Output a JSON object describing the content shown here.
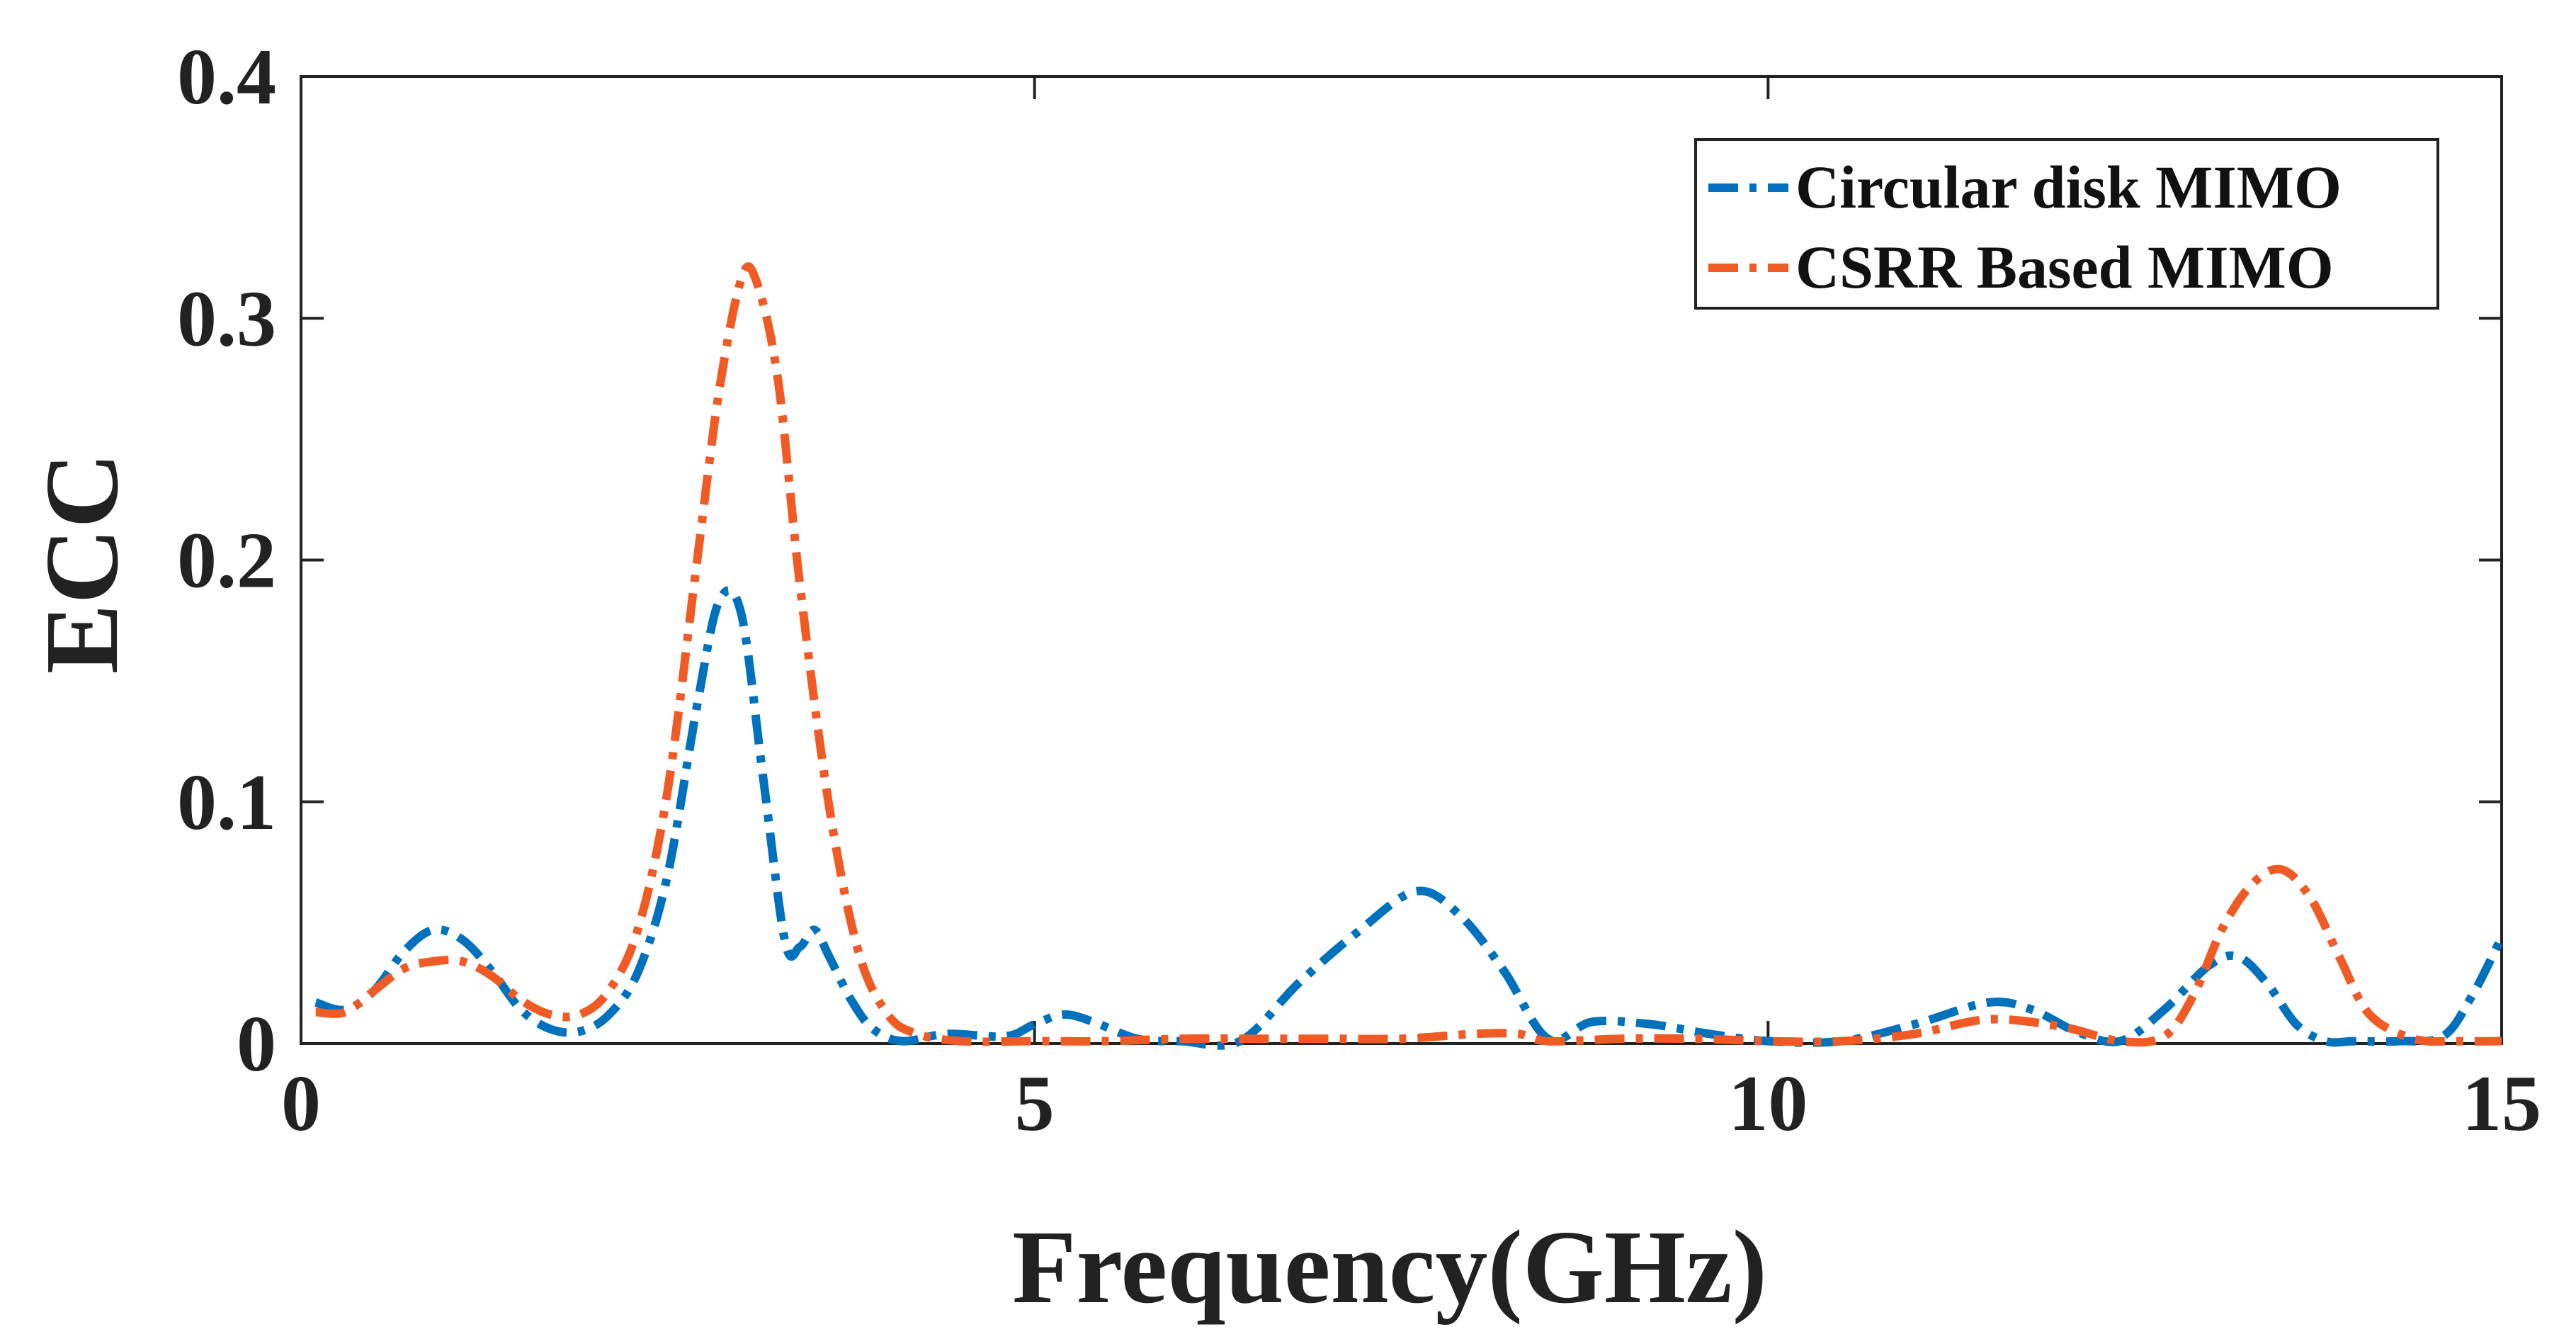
{
  "chart_data": {
    "type": "line",
    "xlabel": "Frequency(GHz)",
    "ylabel": "ECC",
    "xlim": [
      0,
      15
    ],
    "ylim": [
      0,
      0.4
    ],
    "xticks": [
      0,
      5,
      10,
      15
    ],
    "yticks": [
      0,
      0.1,
      0.2,
      0.3,
      0.4
    ],
    "xtick_labels": [
      "0",
      "5",
      "10",
      "15"
    ],
    "ytick_labels": [
      "0",
      "0.1",
      "0.2",
      "0.3",
      "0.4"
    ],
    "grid": false,
    "box": true,
    "legend_position": "top-right",
    "series": [
      {
        "name": "Circular disk MIMO",
        "color": "#0072BD",
        "line_style": "dash-dot",
        "x": [
          0.1,
          0.3,
          0.5,
          0.7,
          0.9,
          1.1,
          1.3,
          1.5,
          1.7,
          1.9,
          2.1,
          2.3,
          2.5,
          2.7,
          2.85,
          3.0,
          3.15,
          3.3,
          3.4,
          3.5,
          3.6,
          3.75,
          3.9,
          4.1,
          4.4,
          4.8,
          5.0,
          5.2,
          5.4,
          5.7,
          6.0,
          6.4,
          6.8,
          7.2,
          7.6,
          7.9,
          8.2,
          8.5,
          8.8,
          9.2,
          9.6,
          10.0,
          10.5,
          11.0,
          11.5,
          11.8,
          12.1,
          12.4,
          12.7,
          13.0,
          13.2,
          13.4,
          13.6,
          13.8,
          14.0,
          14.3,
          14.6,
          14.8,
          15.0
        ],
        "y": [
          0.017,
          0.014,
          0.022,
          0.038,
          0.047,
          0.043,
          0.03,
          0.014,
          0.006,
          0.005,
          0.012,
          0.03,
          0.07,
          0.14,
          0.183,
          0.178,
          0.11,
          0.042,
          0.04,
          0.047,
          0.036,
          0.018,
          0.006,
          0.001,
          0.004,
          0.003,
          0.008,
          0.012,
          0.009,
          0.002,
          0.001,
          0.001,
          0.025,
          0.046,
          0.063,
          0.053,
          0.03,
          0.002,
          0.009,
          0.008,
          0.004,
          0.001,
          0.001,
          0.008,
          0.017,
          0.014,
          0.005,
          0.001,
          0.014,
          0.032,
          0.036,
          0.025,
          0.008,
          0.001,
          0.001,
          0.001,
          0.003,
          0.02,
          0.044
        ]
      },
      {
        "name": "CSRR Based MIMO",
        "color": "#F05A24",
        "line_style": "dash-dot",
        "x": [
          0.1,
          0.3,
          0.5,
          0.7,
          0.9,
          1.1,
          1.3,
          1.5,
          1.7,
          1.9,
          2.1,
          2.3,
          2.5,
          2.7,
          2.85,
          3.0,
          3.1,
          3.25,
          3.4,
          3.6,
          3.8,
          4.0,
          4.2,
          4.5,
          5.0,
          5.5,
          6.0,
          6.5,
          7.0,
          7.5,
          8.0,
          8.3,
          8.5,
          9.0,
          9.5,
          10.0,
          10.5,
          11.0,
          11.5,
          12.0,
          12.4,
          12.7,
          12.9,
          13.1,
          13.3,
          13.5,
          13.7,
          13.9,
          14.1,
          14.4,
          14.7,
          15.0
        ],
        "y": [
          0.013,
          0.013,
          0.022,
          0.031,
          0.034,
          0.034,
          0.028,
          0.018,
          0.012,
          0.012,
          0.022,
          0.048,
          0.105,
          0.2,
          0.27,
          0.316,
          0.316,
          0.275,
          0.19,
          0.098,
          0.038,
          0.012,
          0.004,
          0.001,
          0.001,
          0.001,
          0.002,
          0.002,
          0.002,
          0.002,
          0.004,
          0.004,
          0.001,
          0.002,
          0.002,
          0.001,
          0.001,
          0.004,
          0.01,
          0.007,
          0.001,
          0.003,
          0.02,
          0.048,
          0.066,
          0.072,
          0.06,
          0.035,
          0.012,
          0.002,
          0.001,
          0.001
        ]
      }
    ]
  }
}
